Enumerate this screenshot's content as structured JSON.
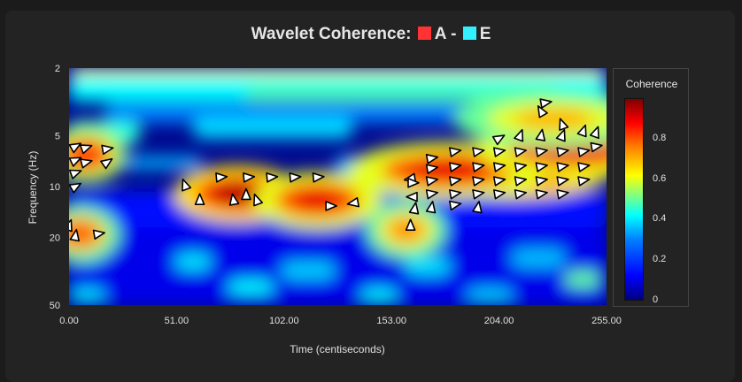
{
  "title": {
    "prefix": "Wavelet Coherence:",
    "series_a": "A",
    "dash": "-",
    "series_b": "E"
  },
  "colors": {
    "series_a": "#ff3333",
    "series_b": "#33f0ff"
  },
  "legend": {
    "title": "Coherence",
    "ticks": [
      "0.8",
      "0.6",
      "0.4",
      "0.2",
      "0"
    ],
    "tick_values": [
      0.8,
      0.6,
      0.4,
      0.2,
      0
    ]
  },
  "chart_data": {
    "type": "heatmap",
    "title": "Wavelet Coherence: A - E",
    "xlabel": "Time (centiseconds)",
    "ylabel": "Frequency (Hz)",
    "xlim": [
      0,
      255
    ],
    "ylim": [
      2,
      50
    ],
    "y_scale": "log",
    "x_ticks": [
      "0.00",
      "51.00",
      "102.00",
      "153.00",
      "204.00",
      "255.00"
    ],
    "x_tick_values": [
      0,
      51,
      102,
      153,
      204,
      255
    ],
    "y_ticks": [
      "2",
      "5",
      "10",
      "20",
      "50"
    ],
    "y_tick_values": [
      2,
      5,
      10,
      20,
      50
    ],
    "colorbar": {
      "label": "Coherence",
      "range": [
        0,
        1
      ]
    },
    "high_coherence_regions": [
      {
        "t": 210,
        "f": 8,
        "value": 0.95
      },
      {
        "t": 180,
        "f": 8,
        "value": 0.9
      },
      {
        "t": 240,
        "f": 6,
        "value": 0.9
      },
      {
        "t": 230,
        "f": 4,
        "value": 0.7
      },
      {
        "t": 8,
        "f": 6.5,
        "value": 0.85
      },
      {
        "t": 80,
        "f": 11,
        "value": 0.95
      },
      {
        "t": 118,
        "f": 12,
        "value": 0.9
      },
      {
        "t": 160,
        "f": 18,
        "value": 0.75
      },
      {
        "t": 5,
        "f": 19,
        "value": 0.8
      }
    ],
    "phase_arrows": [
      {
        "t": 3,
        "f": 5.8,
        "angle": -30
      },
      {
        "t": 8,
        "f": 5.9,
        "angle": -20
      },
      {
        "t": 18,
        "f": 6,
        "angle": -10
      },
      {
        "t": 3,
        "f": 7,
        "angle": -25
      },
      {
        "t": 8,
        "f": 7.2,
        "angle": -15
      },
      {
        "t": 18,
        "f": 7.2,
        "angle": -35
      },
      {
        "t": 3,
        "f": 8.3,
        "angle": -20
      },
      {
        "t": 3,
        "f": 10,
        "angle": -30
      },
      {
        "t": 55,
        "f": 9.8,
        "angle": -110
      },
      {
        "t": 72,
        "f": 8.8,
        "angle": -5
      },
      {
        "t": 85,
        "f": 8.8,
        "angle": -5
      },
      {
        "t": 96,
        "f": 8.8,
        "angle": -5
      },
      {
        "t": 107,
        "f": 8.8,
        "angle": -5
      },
      {
        "t": 118,
        "f": 8.8,
        "angle": -5
      },
      {
        "t": 62,
        "f": 12,
        "angle": -90
      },
      {
        "t": 78,
        "f": 12,
        "angle": -100
      },
      {
        "t": 84,
        "f": 11.2,
        "angle": -90
      },
      {
        "t": 89,
        "f": 12,
        "angle": -110
      },
      {
        "t": 124,
        "f": 13,
        "angle": 0
      },
      {
        "t": 135,
        "f": 12.5,
        "angle": 170
      },
      {
        "t": 0,
        "f": 17,
        "angle": -70
      },
      {
        "t": 3,
        "f": 19.5,
        "angle": -80
      },
      {
        "t": 14,
        "f": 19,
        "angle": -10
      },
      {
        "t": 162,
        "f": 9,
        "angle": 170
      },
      {
        "t": 163,
        "f": 9.5,
        "angle": 0
      },
      {
        "t": 163,
        "f": 11.5,
        "angle": 180
      },
      {
        "t": 164,
        "f": 13.5,
        "angle": -80
      },
      {
        "t": 162,
        "f": 17,
        "angle": -90
      },
      {
        "t": 172,
        "f": 6.8,
        "angle": -10
      },
      {
        "t": 172,
        "f": 7.8,
        "angle": -10
      },
      {
        "t": 172,
        "f": 9.2,
        "angle": -10
      },
      {
        "t": 172,
        "f": 11,
        "angle": -10
      },
      {
        "t": 172,
        "f": 13.3,
        "angle": -80
      },
      {
        "t": 183,
        "f": 6.2,
        "angle": -10
      },
      {
        "t": 183,
        "f": 7.6,
        "angle": -10
      },
      {
        "t": 183,
        "f": 9.2,
        "angle": -10
      },
      {
        "t": 183,
        "f": 11,
        "angle": -10
      },
      {
        "t": 183,
        "f": 12.8,
        "angle": -10
      },
      {
        "t": 194,
        "f": 6.2,
        "angle": -10
      },
      {
        "t": 194,
        "f": 7.6,
        "angle": -10
      },
      {
        "t": 194,
        "f": 9.2,
        "angle": -10
      },
      {
        "t": 194,
        "f": 11,
        "angle": -10
      },
      {
        "t": 194,
        "f": 13.3,
        "angle": -80
      },
      {
        "t": 204,
        "f": 5.2,
        "angle": -30
      },
      {
        "t": 204,
        "f": 6.2,
        "angle": -10
      },
      {
        "t": 204,
        "f": 7.6,
        "angle": -10
      },
      {
        "t": 204,
        "f": 9.2,
        "angle": -10
      },
      {
        "t": 204,
        "f": 11,
        "angle": -10
      },
      {
        "t": 214,
        "f": 5,
        "angle": -70
      },
      {
        "t": 214,
        "f": 6.2,
        "angle": -10
      },
      {
        "t": 214,
        "f": 7.6,
        "angle": -10
      },
      {
        "t": 214,
        "f": 9.2,
        "angle": -10
      },
      {
        "t": 214,
        "f": 11,
        "angle": -10
      },
      {
        "t": 224,
        "f": 3.6,
        "angle": -120
      },
      {
        "t": 226,
        "f": 3.2,
        "angle": -10
      },
      {
        "t": 224,
        "f": 5,
        "angle": -80
      },
      {
        "t": 224,
        "f": 6.2,
        "angle": -10
      },
      {
        "t": 224,
        "f": 7.6,
        "angle": -10
      },
      {
        "t": 224,
        "f": 9.2,
        "angle": -10
      },
      {
        "t": 224,
        "f": 11,
        "angle": -10
      },
      {
        "t": 234,
        "f": 4.3,
        "angle": -110
      },
      {
        "t": 234,
        "f": 5,
        "angle": -70
      },
      {
        "t": 234,
        "f": 6.2,
        "angle": -10
      },
      {
        "t": 234,
        "f": 7.6,
        "angle": -10
      },
      {
        "t": 234,
        "f": 9.2,
        "angle": -10
      },
      {
        "t": 234,
        "f": 11,
        "angle": -10
      },
      {
        "t": 244,
        "f": 4.7,
        "angle": -70
      },
      {
        "t": 244,
        "f": 6.2,
        "angle": -10
      },
      {
        "t": 244,
        "f": 7.6,
        "angle": -10
      },
      {
        "t": 244,
        "f": 9.2,
        "angle": -10
      },
      {
        "t": 250,
        "f": 4.8,
        "angle": -70
      },
      {
        "t": 250,
        "f": 5.8,
        "angle": -10
      }
    ]
  }
}
